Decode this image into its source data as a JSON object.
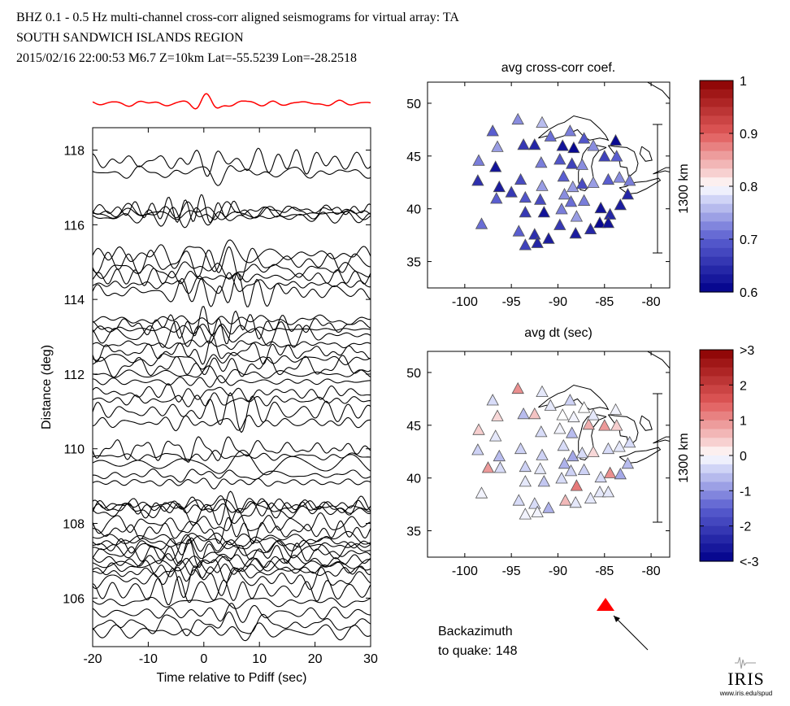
{
  "header": {
    "line1": "BHZ  0.1 - 0.5 Hz  multi-channel cross-corr aligned seismograms for virtual array: TA",
    "line2": "SOUTH SANDWICH ISLANDS REGION",
    "line3": "2015/02/16  22:00:53  M6.7  Z=10km Lat=-55.5239 Lon=-28.2518"
  },
  "seismogram": {
    "xlabel": "Time relative to Pdiff (sec)",
    "ylabel": "Distance (deg)",
    "xticks": [
      "-20",
      "-10",
      "0",
      "10",
      "20",
      "30"
    ],
    "yticks": [
      "106",
      "108",
      "110",
      "112",
      "114",
      "116",
      "118"
    ],
    "xlim": [
      -20,
      30
    ],
    "ylim": [
      104.7,
      118.6
    ],
    "stack_color": "#ff0000",
    "trace_color": "#000000"
  },
  "chart_data": [
    {
      "type": "scatter",
      "title": "avg cross-corr coef.",
      "x_tick_labels": [
        "-100",
        "-95",
        "-90",
        "-85",
        "-80"
      ],
      "y_tick_labels": [
        "35",
        "40",
        "45",
        "50"
      ],
      "xlim": [
        -104,
        -78
      ],
      "ylim": [
        32.5,
        52
      ],
      "scale_label": "1300 km",
      "colorbar": {
        "range": [
          0.6,
          1.0
        ],
        "tick_labels": [
          "1",
          "0.9",
          "0.8",
          "0.7",
          "0.6"
        ],
        "tick_values": [
          1.0,
          0.9,
          0.8,
          0.7,
          0.6
        ]
      },
      "stations": [
        {
          "lon": -98.5,
          "lat": 44.5,
          "value": 0.72
        },
        {
          "lon": -98.6,
          "lat": 42.6,
          "value": 0.65
        },
        {
          "lon": -98.2,
          "lat": 38.5,
          "value": 0.71
        },
        {
          "lon": -97.0,
          "lat": 47.3,
          "value": 0.7
        },
        {
          "lon": -96.5,
          "lat": 45.8,
          "value": 0.74
        },
        {
          "lon": -96.7,
          "lat": 43.9,
          "value": 0.62
        },
        {
          "lon": -96.3,
          "lat": 42.0,
          "value": 0.63
        },
        {
          "lon": -96.6,
          "lat": 40.9,
          "value": 0.7
        },
        {
          "lon": -95.0,
          "lat": 41.5,
          "value": 0.66
        },
        {
          "lon": -94.3,
          "lat": 48.4,
          "value": 0.73
        },
        {
          "lon": -93.7,
          "lat": 46.0,
          "value": 0.66
        },
        {
          "lon": -94.0,
          "lat": 42.7,
          "value": 0.68
        },
        {
          "lon": -93.5,
          "lat": 41.0,
          "value": 0.69
        },
        {
          "lon": -93.5,
          "lat": 39.6,
          "value": 0.66
        },
        {
          "lon": -94.2,
          "lat": 37.8,
          "value": 0.7
        },
        {
          "lon": -93.5,
          "lat": 36.5,
          "value": 0.67
        },
        {
          "lon": -92.5,
          "lat": 46.0,
          "value": 0.64
        },
        {
          "lon": -91.7,
          "lat": 48.1,
          "value": 0.76
        },
        {
          "lon": -91.8,
          "lat": 44.3,
          "value": 0.72
        },
        {
          "lon": -91.7,
          "lat": 42.1,
          "value": 0.74
        },
        {
          "lon": -91.9,
          "lat": 40.8,
          "value": 0.68
        },
        {
          "lon": -91.5,
          "lat": 39.6,
          "value": 0.62
        },
        {
          "lon": -92.5,
          "lat": 37.5,
          "value": 0.65
        },
        {
          "lon": -92.2,
          "lat": 36.7,
          "value": 0.64
        },
        {
          "lon": -91.0,
          "lat": 37.1,
          "value": 0.63
        },
        {
          "lon": -90.8,
          "lat": 46.8,
          "value": 0.71
        },
        {
          "lon": -89.5,
          "lat": 45.9,
          "value": 0.62
        },
        {
          "lon": -89.8,
          "lat": 44.6,
          "value": 0.69
        },
        {
          "lon": -89.4,
          "lat": 43.0,
          "value": 0.7
        },
        {
          "lon": -89.3,
          "lat": 41.3,
          "value": 0.73
        },
        {
          "lon": -89.6,
          "lat": 39.9,
          "value": 0.72
        },
        {
          "lon": -89.8,
          "lat": 38.4,
          "value": 0.66
        },
        {
          "lon": -88.7,
          "lat": 47.3,
          "value": 0.72
        },
        {
          "lon": -88.3,
          "lat": 45.7,
          "value": 0.61
        },
        {
          "lon": -88.5,
          "lat": 44.2,
          "value": 0.67
        },
        {
          "lon": -88.4,
          "lat": 42.0,
          "value": 0.74
        },
        {
          "lon": -88.6,
          "lat": 40.6,
          "value": 0.71
        },
        {
          "lon": -88.0,
          "lat": 39.2,
          "value": 0.74
        },
        {
          "lon": -88.1,
          "lat": 37.6,
          "value": 0.63
        },
        {
          "lon": -87.2,
          "lat": 46.6,
          "value": 0.69
        },
        {
          "lon": -87.4,
          "lat": 44.1,
          "value": 0.73
        },
        {
          "lon": -87.4,
          "lat": 42.3,
          "value": 0.68
        },
        {
          "lon": -87.2,
          "lat": 40.7,
          "value": 0.72
        },
        {
          "lon": -86.5,
          "lat": 38.0,
          "value": 0.64
        },
        {
          "lon": -86.2,
          "lat": 45.9,
          "value": 0.73
        },
        {
          "lon": -86.2,
          "lat": 42.4,
          "value": 0.74
        },
        {
          "lon": -85.4,
          "lat": 40.0,
          "value": 0.62
        },
        {
          "lon": -85.5,
          "lat": 38.6,
          "value": 0.61
        },
        {
          "lon": -85.0,
          "lat": 44.9,
          "value": 0.67
        },
        {
          "lon": -84.6,
          "lat": 42.7,
          "value": 0.7
        },
        {
          "lon": -84.4,
          "lat": 39.4,
          "value": 0.64
        },
        {
          "lon": -84.6,
          "lat": 38.6,
          "value": 0.62
        },
        {
          "lon": -83.8,
          "lat": 46.4,
          "value": 0.61
        },
        {
          "lon": -83.7,
          "lat": 44.9,
          "value": 0.7
        },
        {
          "lon": -83.4,
          "lat": 42.9,
          "value": 0.73
        },
        {
          "lon": -83.3,
          "lat": 40.3,
          "value": 0.63
        },
        {
          "lon": -82.5,
          "lat": 41.3,
          "value": 0.64
        },
        {
          "lon": -82.3,
          "lat": 42.6,
          "value": 0.72
        }
      ]
    },
    {
      "type": "scatter",
      "title": "avg dt (sec)",
      "x_tick_labels": [
        "-100",
        "-95",
        "-90",
        "-85",
        "-80"
      ],
      "y_tick_labels": [
        "35",
        "40",
        "45",
        "50"
      ],
      "xlim": [
        -104,
        -78
      ],
      "ylim": [
        32.5,
        52
      ],
      "scale_label": "1300 km",
      "colorbar": {
        "range": [
          -3,
          3
        ],
        "tick_labels": [
          ">3",
          "2",
          "1",
          "0",
          "-1",
          "-2",
          "<-3"
        ],
        "tick_values": [
          3,
          2,
          1,
          0,
          -1,
          -2,
          -3
        ]
      },
      "stations": [
        {
          "lon": -98.5,
          "lat": 44.5,
          "value": 0.4
        },
        {
          "lon": -98.6,
          "lat": 42.6,
          "value": -0.4
        },
        {
          "lon": -98.2,
          "lat": 38.5,
          "value": -0.1
        },
        {
          "lon": -97.0,
          "lat": 47.3,
          "value": -0.3
        },
        {
          "lon": -96.5,
          "lat": 45.8,
          "value": 0.3
        },
        {
          "lon": -96.7,
          "lat": 43.9,
          "value": -0.2
        },
        {
          "lon": -96.3,
          "lat": 42.0,
          "value": -0.6
        },
        {
          "lon": -97.5,
          "lat": 40.9,
          "value": 0.9
        },
        {
          "lon": -96.2,
          "lat": 40.9,
          "value": -0.3
        },
        {
          "lon": -94.3,
          "lat": 48.4,
          "value": 1.0
        },
        {
          "lon": -93.7,
          "lat": 46.0,
          "value": -0.6
        },
        {
          "lon": -94.0,
          "lat": 42.7,
          "value": -0.4
        },
        {
          "lon": -93.5,
          "lat": 41.0,
          "value": -0.4
        },
        {
          "lon": -93.5,
          "lat": 39.6,
          "value": -0.2
        },
        {
          "lon": -94.2,
          "lat": 37.8,
          "value": -0.3
        },
        {
          "lon": -93.5,
          "lat": 36.5,
          "value": -0.1
        },
        {
          "lon": -92.5,
          "lat": 46.0,
          "value": 0.5
        },
        {
          "lon": -91.7,
          "lat": 48.1,
          "value": -0.2
        },
        {
          "lon": -91.8,
          "lat": 44.3,
          "value": -0.3
        },
        {
          "lon": -91.7,
          "lat": 42.1,
          "value": -0.4
        },
        {
          "lon": -91.9,
          "lat": 40.8,
          "value": -0.2
        },
        {
          "lon": -91.5,
          "lat": 39.6,
          "value": -0.5
        },
        {
          "lon": -92.5,
          "lat": 37.5,
          "value": -0.3
        },
        {
          "lon": -92.2,
          "lat": 36.7,
          "value": -0.1
        },
        {
          "lon": -91.0,
          "lat": 37.1,
          "value": -0.7
        },
        {
          "lon": -90.8,
          "lat": 46.8,
          "value": -0.2
        },
        {
          "lon": -89.5,
          "lat": 45.9,
          "value": 0.0
        },
        {
          "lon": -89.8,
          "lat": 44.6,
          "value": -0.1
        },
        {
          "lon": -89.4,
          "lat": 43.0,
          "value": -0.3
        },
        {
          "lon": -89.3,
          "lat": 41.3,
          "value": -0.7
        },
        {
          "lon": -89.6,
          "lat": 39.9,
          "value": -0.3
        },
        {
          "lon": -89.2,
          "lat": 37.8,
          "value": 0.6
        },
        {
          "lon": -88.7,
          "lat": 47.3,
          "value": -0.4
        },
        {
          "lon": -88.3,
          "lat": 45.7,
          "value": -0.1
        },
        {
          "lon": -88.5,
          "lat": 44.2,
          "value": -0.6
        },
        {
          "lon": -88.4,
          "lat": 42.0,
          "value": -0.8
        },
        {
          "lon": -88.6,
          "lat": 40.6,
          "value": -0.4
        },
        {
          "lon": -88.0,
          "lat": 39.2,
          "value": 1.2
        },
        {
          "lon": -88.1,
          "lat": 37.6,
          "value": -0.2
        },
        {
          "lon": -87.2,
          "lat": 46.6,
          "value": 0.0
        },
        {
          "lon": -86.7,
          "lat": 45.0,
          "value": 0.7
        },
        {
          "lon": -87.4,
          "lat": 42.3,
          "value": -0.3
        },
        {
          "lon": -87.2,
          "lat": 40.7,
          "value": -0.4
        },
        {
          "lon": -86.5,
          "lat": 38.0,
          "value": -0.2
        },
        {
          "lon": -86.2,
          "lat": 45.9,
          "value": -0.2
        },
        {
          "lon": -86.2,
          "lat": 42.4,
          "value": 0.3
        },
        {
          "lon": -85.4,
          "lat": 40.0,
          "value": -0.3
        },
        {
          "lon": -85.5,
          "lat": 38.6,
          "value": -0.2
        },
        {
          "lon": -85.0,
          "lat": 44.9,
          "value": 0.9
        },
        {
          "lon": -84.6,
          "lat": 42.7,
          "value": -0.3
        },
        {
          "lon": -84.4,
          "lat": 40.4,
          "value": 1.0
        },
        {
          "lon": -84.6,
          "lat": 38.6,
          "value": -0.2
        },
        {
          "lon": -83.8,
          "lat": 46.4,
          "value": -0.1
        },
        {
          "lon": -83.7,
          "lat": 44.9,
          "value": 0.4
        },
        {
          "lon": -83.4,
          "lat": 42.9,
          "value": -0.2
        },
        {
          "lon": -83.3,
          "lat": 40.3,
          "value": -0.8
        },
        {
          "lon": -82.5,
          "lat": 41.3,
          "value": -0.6
        },
        {
          "lon": -82.3,
          "lat": 43.3,
          "value": -0.3
        }
      ]
    }
  ],
  "backazimuth": {
    "label1": "Backazimuth",
    "label2": "to quake:",
    "value": 148,
    "value_text": "148"
  },
  "logo": {
    "text": "IRIS",
    "url_text": "www.iris.edu/spud"
  }
}
